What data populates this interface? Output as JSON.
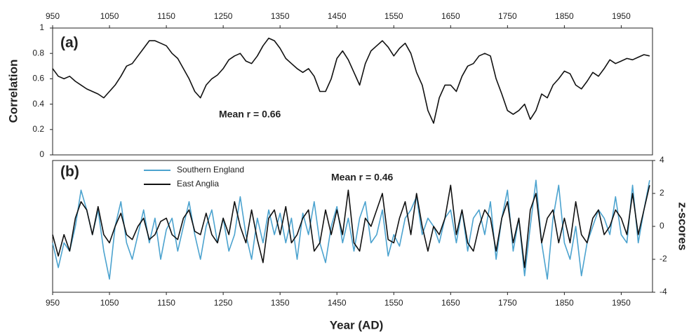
{
  "chart_data": [
    {
      "type": "line",
      "panel_label": "(a)",
      "annotation": "Mean r = 0.66",
      "y_label": "Correlation",
      "x": [
        950,
        960,
        970,
        980,
        990,
        1000,
        1010,
        1020,
        1030,
        1040,
        1050,
        1060,
        1070,
        1080,
        1090,
        1100,
        1110,
        1120,
        1130,
        1140,
        1150,
        1160,
        1170,
        1180,
        1190,
        1200,
        1210,
        1220,
        1230,
        1240,
        1250,
        1260,
        1270,
        1280,
        1290,
        1300,
        1310,
        1320,
        1330,
        1340,
        1350,
        1360,
        1370,
        1380,
        1390,
        1400,
        1410,
        1420,
        1430,
        1440,
        1450,
        1460,
        1470,
        1480,
        1490,
        1500,
        1510,
        1520,
        1530,
        1540,
        1550,
        1560,
        1570,
        1580,
        1590,
        1600,
        1610,
        1620,
        1630,
        1640,
        1650,
        1660,
        1670,
        1680,
        1690,
        1700,
        1710,
        1720,
        1730,
        1740,
        1750,
        1760,
        1770,
        1780,
        1790,
        1800,
        1810,
        1820,
        1830,
        1840,
        1850,
        1860,
        1870,
        1880,
        1890,
        1900,
        1910,
        1920,
        1930,
        1940,
        1950,
        1960,
        1970,
        1980,
        1990,
        2000
      ],
      "values": [
        0.68,
        0.62,
        0.6,
        0.62,
        0.58,
        0.55,
        0.52,
        0.5,
        0.48,
        0.45,
        0.5,
        0.55,
        0.62,
        0.7,
        0.72,
        0.78,
        0.84,
        0.9,
        0.9,
        0.88,
        0.86,
        0.8,
        0.76,
        0.68,
        0.6,
        0.5,
        0.45,
        0.55,
        0.6,
        0.63,
        0.68,
        0.75,
        0.78,
        0.8,
        0.74,
        0.72,
        0.78,
        0.86,
        0.92,
        0.9,
        0.84,
        0.76,
        0.72,
        0.68,
        0.65,
        0.68,
        0.62,
        0.5,
        0.5,
        0.6,
        0.76,
        0.82,
        0.75,
        0.65,
        0.55,
        0.72,
        0.82,
        0.86,
        0.9,
        0.85,
        0.78,
        0.84,
        0.88,
        0.8,
        0.65,
        0.55,
        0.35,
        0.25,
        0.45,
        0.55,
        0.55,
        0.5,
        0.62,
        0.7,
        0.72,
        0.78,
        0.8,
        0.78,
        0.6,
        0.48,
        0.35,
        0.32,
        0.35,
        0.4,
        0.28,
        0.35,
        0.48,
        0.45,
        0.55,
        0.6,
        0.66,
        0.64,
        0.55,
        0.52,
        0.58,
        0.65,
        0.62,
        0.68,
        0.75,
        0.72,
        0.74,
        0.76,
        0.75,
        0.77,
        0.79,
        0.78
      ],
      "color": "#111111",
      "xlim": [
        950,
        2005
      ],
      "xticks": [
        950,
        1050,
        1150,
        1250,
        1350,
        1450,
        1550,
        1650,
        1750,
        1850,
        1950
      ],
      "ylim": [
        0,
        1
      ],
      "yticks": [
        0,
        0.2,
        0.4,
        0.6,
        0.8,
        1
      ]
    },
    {
      "type": "line",
      "panel_label": "(b)",
      "annotation": "Mean r = 0.46",
      "y_label": "z-scores",
      "x_label": "Year (AD)",
      "x": [
        950,
        960,
        970,
        980,
        990,
        1000,
        1010,
        1020,
        1030,
        1040,
        1050,
        1060,
        1070,
        1080,
        1090,
        1100,
        1110,
        1120,
        1130,
        1140,
        1150,
        1160,
        1170,
        1180,
        1190,
        1200,
        1210,
        1220,
        1230,
        1240,
        1250,
        1260,
        1270,
        1280,
        1290,
        1300,
        1310,
        1320,
        1330,
        1340,
        1350,
        1360,
        1370,
        1380,
        1390,
        1400,
        1410,
        1420,
        1430,
        1440,
        1450,
        1460,
        1470,
        1480,
        1490,
        1500,
        1510,
        1520,
        1530,
        1540,
        1550,
        1560,
        1570,
        1580,
        1590,
        1600,
        1610,
        1620,
        1630,
        1640,
        1650,
        1660,
        1670,
        1680,
        1690,
        1700,
        1710,
        1720,
        1730,
        1740,
        1750,
        1760,
        1770,
        1780,
        1790,
        1800,
        1810,
        1820,
        1830,
        1840,
        1850,
        1860,
        1870,
        1880,
        1890,
        1900,
        1910,
        1920,
        1930,
        1940,
        1950,
        1960,
        1970,
        1980,
        1990,
        2000
      ],
      "series": [
        {
          "name": "Southern England",
          "color": "#4ca3cf",
          "values": [
            -1,
            -2.5,
            -1,
            -1.5,
            0,
            2.2,
            1,
            -0.5,
            1,
            -1.5,
            -3.2,
            0,
            1.5,
            -1,
            -2,
            -0.5,
            1,
            -1,
            0.5,
            -2,
            -0.2,
            0.5,
            -1.5,
            0,
            1.5,
            -0.5,
            -2,
            0,
            1,
            -1,
            0.5,
            -1.5,
            -0.5,
            1.8,
            -0.5,
            -2,
            0.5,
            -1,
            1,
            -0.5,
            0.8,
            -1,
            0.5,
            -2,
            0.8,
            -0.5,
            1.5,
            -1,
            -2.2,
            0,
            1.2,
            -1,
            0.5,
            -1.5,
            0.5,
            1.5,
            -1,
            -0.5,
            1,
            -1.8,
            -0.5,
            -1.2,
            0.5,
            1,
            1.8,
            -0.5,
            0.5,
            0,
            -1,
            0.5,
            1,
            -1,
            1,
            -1.5,
            0.5,
            1,
            -0.5,
            1.5,
            -2,
            0.5,
            2.2,
            -1.5,
            0.5,
            -3,
            0,
            2.8,
            -1,
            -3.2,
            0.5,
            2.5,
            -1,
            -2,
            0,
            -3,
            -1,
            0,
            1,
            0.5,
            -0.5,
            1.8,
            -0.5,
            -1,
            2.5,
            -1,
            1,
            2.8
          ]
        },
        {
          "name": "East Anglia",
          "color": "#111111",
          "values": [
            -0.5,
            -1.8,
            -0.5,
            -1.5,
            0.5,
            1.5,
            1,
            -0.5,
            1.2,
            -0.5,
            -1,
            0,
            0.8,
            -0.5,
            -0.8,
            0,
            0.5,
            -0.8,
            -0.5,
            0.3,
            0.5,
            -0.5,
            -0.8,
            0.5,
            1,
            -0.3,
            -0.5,
            0.8,
            -0.5,
            -1,
            0.5,
            -0.5,
            1.5,
            0,
            -1,
            1,
            -0.8,
            -2.2,
            0.5,
            1,
            -0.5,
            1.2,
            -1,
            -0.5,
            0.5,
            1,
            -1.5,
            -1,
            1,
            -0.5,
            1,
            -0.5,
            2.2,
            -1,
            -1.5,
            0.5,
            0,
            1,
            2,
            -0.8,
            -1,
            0.5,
            1.5,
            -0.5,
            2,
            0,
            -1.5,
            0,
            -0.5,
            0.5,
            2.5,
            -0.5,
            1,
            -1,
            -1.5,
            0,
            1,
            0.5,
            -1.5,
            0.5,
            1.5,
            -1,
            0.5,
            -2.5,
            1,
            2,
            -1,
            0.5,
            1,
            -1,
            0.5,
            -1,
            1.5,
            -0.5,
            -1,
            0.5,
            1,
            -0.5,
            0,
            1,
            0.5,
            -0.5,
            2,
            -0.5,
            1,
            2.5
          ]
        }
      ],
      "xlim": [
        950,
        2005
      ],
      "xticks": [
        950,
        1050,
        1150,
        1250,
        1350,
        1450,
        1550,
        1650,
        1750,
        1850,
        1950
      ],
      "ylim": [
        -4,
        4
      ],
      "yticks": [
        -4,
        -2,
        0,
        2,
        4
      ]
    }
  ]
}
